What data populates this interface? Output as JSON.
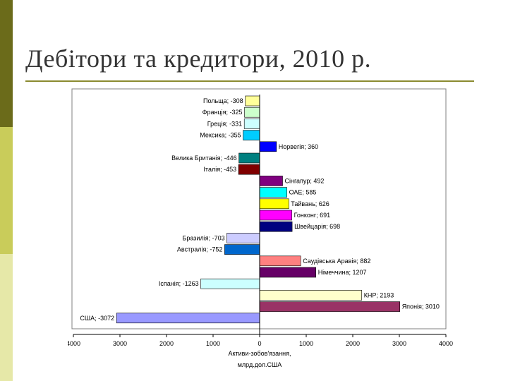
{
  "slide": {
    "title": "Дебітори та кредитори, 2010 р."
  },
  "theme": {
    "strip_colors": [
      "#6b6b1a",
      "#c9cc5a",
      "#e6e8a8"
    ],
    "rule_color": "#8a8a30"
  },
  "chart_data": {
    "type": "bar",
    "orientation": "horizontal",
    "title": "",
    "xlabel": [
      "Активи-зобов'язання,",
      "млрд.дол.США"
    ],
    "ylabel": "",
    "xlim": [
      -4000,
      4000
    ],
    "x_ticks": [
      -4000,
      -3000,
      -2000,
      -1000,
      0,
      1000,
      2000,
      3000,
      4000
    ],
    "x_tick_labels": [
      "4000",
      "3000",
      "2000",
      "1000",
      "0",
      "1000",
      "2000",
      "3000",
      "4000"
    ],
    "grid": false,
    "legend": "none",
    "bars": [
      {
        "label": "Польща; -308",
        "value": -308,
        "color": "#ffff99"
      },
      {
        "label": "Франція; -325",
        "value": -325,
        "color": "#ccffcc"
      },
      {
        "label": "Греція; -331",
        "value": -331,
        "color": "#ccffff"
      },
      {
        "label": "Мексика; -355",
        "value": -355,
        "color": "#00ccff"
      },
      {
        "label": "Норвегія; 360",
        "value": 360,
        "color": "#0000ff"
      },
      {
        "label": "Велика Британія; -446",
        "value": -446,
        "color": "#008080"
      },
      {
        "label": "Італія; -453",
        "value": -453,
        "color": "#800000"
      },
      {
        "label": "Сінгапур; 492",
        "value": 492,
        "color": "#800080"
      },
      {
        "label": "ОАЕ; 585",
        "value": 585,
        "color": "#00ffff"
      },
      {
        "label": "Тайвань; 626",
        "value": 626,
        "color": "#ffff00"
      },
      {
        "label": "Гонконг; 691",
        "value": 691,
        "color": "#ff00ff"
      },
      {
        "label": "Швейцарія; 698",
        "value": 698,
        "color": "#000080"
      },
      {
        "label": "Бразилія; -703",
        "value": -703,
        "color": "#ccccff"
      },
      {
        "label": "Австралія; -752",
        "value": -752,
        "color": "#0066cc"
      },
      {
        "label": "Саудівська Аравія; 882",
        "value": 882,
        "color": "#ff8080"
      },
      {
        "label": "Німеччина; 1207",
        "value": 1207,
        "color": "#660066"
      },
      {
        "label": "Іспанія; -1263",
        "value": -1263,
        "color": "#ccffff"
      },
      {
        "label": "КНР; 2193",
        "value": 2193,
        "color": "#ffffcc"
      },
      {
        "label": "Японія; 3010",
        "value": 3010,
        "color": "#993366"
      },
      {
        "label": "США; -3072",
        "value": -3072,
        "color": "#9999ff"
      }
    ]
  }
}
